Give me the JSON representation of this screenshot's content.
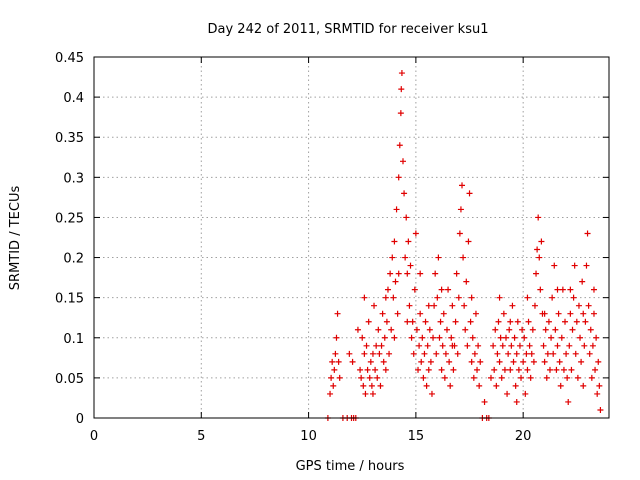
{
  "chart_data": {
    "type": "scatter",
    "title": "Day 242 of 2011, SRMTID for receiver ksu1",
    "xlabel": "GPS time / hours",
    "ylabel": "SRMTID / TECUs",
    "xlim": [
      0,
      24
    ],
    "ylim": [
      0,
      0.45
    ],
    "xticks": [
      0,
      5,
      10,
      15,
      20
    ],
    "xtick_labels": [
      "0",
      "5",
      "10",
      "15",
      "20"
    ],
    "yticks": [
      0,
      0.05,
      0.1,
      0.15,
      0.2,
      0.25,
      0.3,
      0.35,
      0.4,
      0.45
    ],
    "ytick_labels": [
      "0",
      "0.05",
      "0.1",
      "0.15",
      "0.2",
      "0.25",
      "0.3",
      "0.35",
      "0.4",
      "0.45"
    ],
    "grid": true,
    "marker": "+",
    "series_color": "#e00000",
    "series": [
      {
        "name": "SRMTID",
        "points": [
          [
            10.9,
            0.0
          ],
          [
            11.0,
            0.03
          ],
          [
            11.05,
            0.05
          ],
          [
            11.1,
            0.07
          ],
          [
            11.15,
            0.04
          ],
          [
            11.2,
            0.06
          ],
          [
            11.25,
            0.08
          ],
          [
            11.3,
            0.1
          ],
          [
            11.35,
            0.13
          ],
          [
            11.4,
            0.07
          ],
          [
            11.45,
            0.05
          ],
          [
            11.6,
            0.0
          ],
          [
            11.8,
            0.0
          ],
          [
            11.9,
            0.08
          ],
          [
            12.0,
            0.0
          ],
          [
            12.05,
            0.07
          ],
          [
            12.1,
            0.0
          ],
          [
            12.2,
            0.0
          ],
          [
            12.3,
            0.11
          ],
          [
            12.4,
            0.06
          ],
          [
            12.45,
            0.05
          ],
          [
            12.5,
            0.1
          ],
          [
            12.55,
            0.04
          ],
          [
            12.6,
            0.08
          ],
          [
            12.65,
            0.03
          ],
          [
            12.7,
            0.09
          ],
          [
            12.75,
            0.06
          ],
          [
            12.8,
            0.12
          ],
          [
            12.85,
            0.05
          ],
          [
            12.9,
            0.07
          ],
          [
            12.95,
            0.04
          ],
          [
            13.0,
            0.08
          ],
          [
            13.05,
            0.14
          ],
          [
            13.1,
            0.06
          ],
          [
            13.15,
            0.09
          ],
          [
            13.2,
            0.05
          ],
          [
            13.25,
            0.11
          ],
          [
            13.3,
            0.08
          ],
          [
            13.35,
            0.04
          ],
          [
            13.4,
            0.09
          ],
          [
            13.45,
            0.13
          ],
          [
            13.5,
            0.07
          ],
          [
            13.55,
            0.1
          ],
          [
            13.6,
            0.06
          ],
          [
            13.65,
            0.12
          ],
          [
            13.7,
            0.16
          ],
          [
            13.75,
            0.08
          ],
          [
            13.8,
            0.18
          ],
          [
            13.85,
            0.11
          ],
          [
            13.9,
            0.2
          ],
          [
            13.95,
            0.15
          ],
          [
            14.0,
            0.22
          ],
          [
            14.05,
            0.17
          ],
          [
            14.1,
            0.26
          ],
          [
            14.15,
            0.13
          ],
          [
            14.2,
            0.3
          ],
          [
            14.25,
            0.34
          ],
          [
            14.3,
            0.38
          ],
          [
            14.32,
            0.41
          ],
          [
            14.35,
            0.43
          ],
          [
            14.4,
            0.32
          ],
          [
            14.45,
            0.28
          ],
          [
            14.5,
            0.2
          ],
          [
            14.55,
            0.25
          ],
          [
            14.6,
            0.18
          ],
          [
            14.65,
            0.22
          ],
          [
            14.7,
            0.14
          ],
          [
            14.75,
            0.19
          ],
          [
            14.8,
            0.1
          ],
          [
            14.85,
            0.12
          ],
          [
            14.9,
            0.08
          ],
          [
            14.95,
            0.16
          ],
          [
            15.0,
            0.23
          ],
          [
            15.05,
            0.11
          ],
          [
            15.1,
            0.06
          ],
          [
            15.15,
            0.09
          ],
          [
            15.2,
            0.13
          ],
          [
            15.25,
            0.07
          ],
          [
            15.3,
            0.1
          ],
          [
            15.35,
            0.05
          ],
          [
            15.4,
            0.08
          ],
          [
            15.45,
            0.12
          ],
          [
            15.5,
            0.04
          ],
          [
            15.55,
            0.09
          ],
          [
            15.6,
            0.06
          ],
          [
            15.65,
            0.11
          ],
          [
            15.7,
            0.07
          ],
          [
            15.75,
            0.03
          ],
          [
            15.8,
            0.1
          ],
          [
            15.85,
            0.14
          ],
          [
            15.9,
            0.18
          ],
          [
            15.95,
            0.08
          ],
          [
            16.0,
            0.15
          ],
          [
            16.05,
            0.2
          ],
          [
            16.1,
            0.1
          ],
          [
            16.15,
            0.12
          ],
          [
            16.2,
            0.06
          ],
          [
            16.25,
            0.09
          ],
          [
            16.3,
            0.13
          ],
          [
            16.35,
            0.05
          ],
          [
            16.4,
            0.08
          ],
          [
            16.45,
            0.11
          ],
          [
            16.5,
            0.16
          ],
          [
            16.55,
            0.07
          ],
          [
            16.6,
            0.04
          ],
          [
            16.65,
            0.1
          ],
          [
            16.7,
            0.14
          ],
          [
            16.75,
            0.06
          ],
          [
            16.8,
            0.09
          ],
          [
            16.85,
            0.12
          ],
          [
            16.9,
            0.18
          ],
          [
            16.95,
            0.08
          ],
          [
            17.0,
            0.15
          ],
          [
            17.05,
            0.23
          ],
          [
            17.1,
            0.26
          ],
          [
            17.15,
            0.29
          ],
          [
            17.2,
            0.2
          ],
          [
            17.25,
            0.14
          ],
          [
            17.3,
            0.11
          ],
          [
            17.35,
            0.17
          ],
          [
            17.4,
            0.09
          ],
          [
            17.45,
            0.22
          ],
          [
            17.5,
            0.28
          ],
          [
            17.55,
            0.12
          ],
          [
            17.6,
            0.07
          ],
          [
            17.65,
            0.1
          ],
          [
            17.7,
            0.05
          ],
          [
            17.75,
            0.08
          ],
          [
            17.8,
            0.13
          ],
          [
            17.85,
            0.06
          ],
          [
            17.9,
            0.09
          ],
          [
            17.95,
            0.04
          ],
          [
            18.0,
            0.07
          ],
          [
            18.1,
            0.0
          ],
          [
            18.2,
            0.02
          ],
          [
            18.3,
            0.0
          ],
          [
            18.4,
            0.0
          ],
          [
            18.5,
            0.05
          ],
          [
            18.6,
            0.09
          ],
          [
            18.65,
            0.06
          ],
          [
            18.7,
            0.11
          ],
          [
            18.75,
            0.04
          ],
          [
            18.8,
            0.08
          ],
          [
            18.85,
            0.12
          ],
          [
            18.9,
            0.07
          ],
          [
            18.95,
            0.1
          ],
          [
            19.0,
            0.05
          ],
          [
            19.05,
            0.09
          ],
          [
            19.1,
            0.13
          ],
          [
            19.15,
            0.06
          ],
          [
            19.2,
            0.1
          ],
          [
            19.25,
            0.03
          ],
          [
            19.3,
            0.08
          ],
          [
            19.35,
            0.11
          ],
          [
            19.4,
            0.06
          ],
          [
            19.45,
            0.09
          ],
          [
            19.5,
            0.14
          ],
          [
            19.55,
            0.07
          ],
          [
            19.6,
            0.1
          ],
          [
            19.65,
            0.04
          ],
          [
            19.7,
            0.08
          ],
          [
            19.75,
            0.12
          ],
          [
            19.8,
            0.06
          ],
          [
            19.85,
            0.09
          ],
          [
            19.9,
            0.05
          ],
          [
            19.95,
            0.11
          ],
          [
            20.0,
            0.07
          ],
          [
            20.05,
            0.1
          ],
          [
            20.1,
            0.03
          ],
          [
            20.15,
            0.08
          ],
          [
            20.2,
            0.06
          ],
          [
            20.25,
            0.12
          ],
          [
            20.3,
            0.09
          ],
          [
            20.35,
            0.05
          ],
          [
            20.4,
            0.08
          ],
          [
            20.45,
            0.11
          ],
          [
            20.5,
            0.07
          ],
          [
            20.55,
            0.14
          ],
          [
            20.6,
            0.18
          ],
          [
            20.65,
            0.21
          ],
          [
            20.7,
            0.25
          ],
          [
            20.75,
            0.2
          ],
          [
            20.8,
            0.16
          ],
          [
            20.85,
            0.22
          ],
          [
            20.9,
            0.13
          ],
          [
            20.95,
            0.09
          ],
          [
            21.0,
            0.07
          ],
          [
            21.05,
            0.11
          ],
          [
            21.1,
            0.05
          ],
          [
            21.15,
            0.08
          ],
          [
            21.2,
            0.12
          ],
          [
            21.25,
            0.06
          ],
          [
            21.3,
            0.1
          ],
          [
            21.35,
            0.15
          ],
          [
            21.4,
            0.08
          ],
          [
            21.45,
            0.19
          ],
          [
            21.5,
            0.11
          ],
          [
            21.55,
            0.06
          ],
          [
            21.6,
            0.09
          ],
          [
            21.65,
            0.13
          ],
          [
            21.7,
            0.07
          ],
          [
            21.75,
            0.04
          ],
          [
            21.8,
            0.1
          ],
          [
            21.85,
            0.16
          ],
          [
            21.9,
            0.06
          ],
          [
            21.95,
            0.12
          ],
          [
            22.0,
            0.08
          ],
          [
            22.05,
            0.05
          ],
          [
            22.1,
            0.02
          ],
          [
            22.15,
            0.09
          ],
          [
            22.2,
            0.13
          ],
          [
            22.25,
            0.06
          ],
          [
            22.3,
            0.11
          ],
          [
            22.35,
            0.15
          ],
          [
            22.4,
            0.19
          ],
          [
            22.45,
            0.08
          ],
          [
            22.5,
            0.12
          ],
          [
            22.55,
            0.05
          ],
          [
            22.6,
            0.14
          ],
          [
            22.65,
            0.1
          ],
          [
            22.7,
            0.07
          ],
          [
            22.75,
            0.17
          ],
          [
            22.8,
            0.04
          ],
          [
            22.85,
            0.09
          ],
          [
            22.9,
            0.12
          ],
          [
            22.95,
            0.19
          ],
          [
            23.0,
            0.23
          ],
          [
            23.05,
            0.14
          ],
          [
            23.1,
            0.08
          ],
          [
            23.15,
            0.11
          ],
          [
            23.2,
            0.05
          ],
          [
            23.25,
            0.09
          ],
          [
            23.3,
            0.13
          ],
          [
            23.35,
            0.06
          ],
          [
            23.4,
            0.1
          ],
          [
            23.45,
            0.03
          ],
          [
            23.5,
            0.07
          ],
          [
            23.55,
            0.04
          ],
          [
            23.6,
            0.01
          ],
          [
            12.6,
            0.15
          ],
          [
            13.0,
            0.03
          ],
          [
            13.6,
            0.15
          ],
          [
            14.0,
            0.1
          ],
          [
            14.2,
            0.18
          ],
          [
            14.6,
            0.12
          ],
          [
            15.2,
            0.18
          ],
          [
            15.6,
            0.14
          ],
          [
            16.2,
            0.16
          ],
          [
            16.7,
            0.09
          ],
          [
            17.6,
            0.15
          ],
          [
            18.9,
            0.15
          ],
          [
            19.4,
            0.12
          ],
          [
            20.2,
            0.15
          ],
          [
            21.0,
            0.13
          ],
          [
            21.6,
            0.16
          ],
          [
            22.2,
            0.16
          ],
          [
            22.8,
            0.13
          ],
          [
            23.3,
            0.16
          ],
          [
            19.7,
            0.02
          ]
        ]
      }
    ]
  }
}
